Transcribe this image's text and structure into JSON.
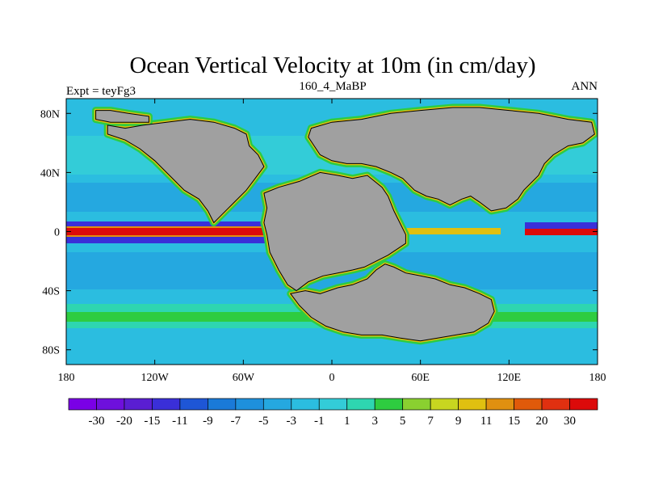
{
  "chart_data": {
    "type": "heatmap",
    "title": "Ocean Vertical Velocity at 10m (in cm/day)",
    "left_label": "Expt = teyFg3",
    "center_label": "160_4_MaBP",
    "right_label": "ANN",
    "x_ticks": [
      {
        "value": -180,
        "label": "180"
      },
      {
        "value": -120,
        "label": "120W"
      },
      {
        "value": -60,
        "label": "60W"
      },
      {
        "value": 0,
        "label": "0"
      },
      {
        "value": 60,
        "label": "60E"
      },
      {
        "value": 120,
        "label": "120E"
      },
      {
        "value": 180,
        "label": "180"
      }
    ],
    "y_ticks": [
      {
        "value": 80,
        "label": "80N"
      },
      {
        "value": 40,
        "label": "40N"
      },
      {
        "value": 0,
        "label": "0"
      },
      {
        "value": -40,
        "label": "40S"
      },
      {
        "value": -80,
        "label": "80S"
      }
    ],
    "xlim": [
      -180,
      180
    ],
    "ylim": [
      -90,
      90
    ],
    "land_color": "#a0a0a0",
    "colorbar": {
      "levels": [
        "-30",
        "-20",
        "-15",
        "-11",
        "-9",
        "-7",
        "-5",
        "-3",
        "-1",
        "1",
        "3",
        "5",
        "7",
        "9",
        "11",
        "15",
        "20",
        "30"
      ],
      "colors": [
        "#7a00e6",
        "#6e10dc",
        "#5a1ed2",
        "#3a2fd8",
        "#1e56d6",
        "#1a7ad8",
        "#1e90dc",
        "#25a8e0",
        "#2bbde0",
        "#33ccd8",
        "#2ed6b0",
        "#2ecc40",
        "#8ad030",
        "#c8d620",
        "#e0c010",
        "#e09010",
        "#e05a0a",
        "#e03010",
        "#dc0a0a"
      ]
    },
    "land_polygons": [
      {
        "name": "north-america",
        "points": [
          [
            -152,
            72
          ],
          [
            -140,
            70
          ],
          [
            -128,
            72
          ],
          [
            -112,
            74
          ],
          [
            -96,
            76
          ],
          [
            -80,
            74
          ],
          [
            -66,
            70
          ],
          [
            -58,
            66
          ],
          [
            -56,
            58
          ],
          [
            -50,
            52
          ],
          [
            -46,
            44
          ],
          [
            -52,
            36
          ],
          [
            -58,
            28
          ],
          [
            -66,
            20
          ],
          [
            -76,
            10
          ],
          [
            -80,
            6
          ],
          [
            -84,
            14
          ],
          [
            -90,
            22
          ],
          [
            -100,
            28
          ],
          [
            -106,
            34
          ],
          [
            -112,
            40
          ],
          [
            -120,
            48
          ],
          [
            -130,
            56
          ],
          [
            -140,
            62
          ],
          [
            -152,
            66
          ]
        ]
      },
      {
        "name": "eurasia",
        "points": [
          [
            -14,
            70
          ],
          [
            0,
            74
          ],
          [
            20,
            76
          ],
          [
            40,
            80
          ],
          [
            60,
            82
          ],
          [
            82,
            84
          ],
          [
            100,
            84
          ],
          [
            120,
            82
          ],
          [
            140,
            80
          ],
          [
            160,
            76
          ],
          [
            176,
            74
          ],
          [
            178,
            66
          ],
          [
            170,
            60
          ],
          [
            160,
            58
          ],
          [
            150,
            52
          ],
          [
            144,
            46
          ],
          [
            140,
            38
          ],
          [
            134,
            32
          ],
          [
            130,
            28
          ],
          [
            126,
            22
          ],
          [
            118,
            16
          ],
          [
            108,
            14
          ],
          [
            100,
            20
          ],
          [
            94,
            24
          ],
          [
            88,
            22
          ],
          [
            80,
            18
          ],
          [
            72,
            22
          ],
          [
            64,
            24
          ],
          [
            56,
            28
          ],
          [
            48,
            36
          ],
          [
            40,
            40
          ],
          [
            30,
            44
          ],
          [
            20,
            46
          ],
          [
            10,
            46
          ],
          [
            0,
            48
          ],
          [
            -8,
            52
          ],
          [
            -12,
            58
          ],
          [
            -16,
            64
          ]
        ]
      },
      {
        "name": "south-america-africa",
        "points": [
          [
            -46,
            26
          ],
          [
            -36,
            30
          ],
          [
            -22,
            34
          ],
          [
            -8,
            40
          ],
          [
            4,
            38
          ],
          [
            14,
            36
          ],
          [
            24,
            38
          ],
          [
            34,
            30
          ],
          [
            38,
            24
          ],
          [
            42,
            14
          ],
          [
            46,
            6
          ],
          [
            50,
            -2
          ],
          [
            50,
            -8
          ],
          [
            44,
            -12
          ],
          [
            38,
            -16
          ],
          [
            30,
            -20
          ],
          [
            22,
            -24
          ],
          [
            14,
            -26
          ],
          [
            4,
            -28
          ],
          [
            -6,
            -30
          ],
          [
            -16,
            -34
          ],
          [
            -24,
            -40
          ],
          [
            -30,
            -36
          ],
          [
            -36,
            -26
          ],
          [
            -42,
            -14
          ],
          [
            -44,
            -2
          ],
          [
            -46,
            6
          ],
          [
            -44,
            16
          ]
        ]
      },
      {
        "name": "india-antarctica-australia",
        "points": [
          [
            -28,
            -42
          ],
          [
            -18,
            -40
          ],
          [
            -8,
            -42
          ],
          [
            4,
            -38
          ],
          [
            14,
            -36
          ],
          [
            24,
            -32
          ],
          [
            30,
            -26
          ],
          [
            36,
            -22
          ],
          [
            42,
            -24
          ],
          [
            50,
            -28
          ],
          [
            60,
            -30
          ],
          [
            70,
            -32
          ],
          [
            80,
            -36
          ],
          [
            90,
            -38
          ],
          [
            100,
            -42
          ],
          [
            108,
            -46
          ],
          [
            110,
            -54
          ],
          [
            106,
            -62
          ],
          [
            96,
            -68
          ],
          [
            84,
            -70
          ],
          [
            72,
            -72
          ],
          [
            60,
            -74
          ],
          [
            46,
            -72
          ],
          [
            34,
            -70
          ],
          [
            20,
            -70
          ],
          [
            8,
            -68
          ],
          [
            -4,
            -64
          ],
          [
            -14,
            -58
          ],
          [
            -22,
            -50
          ]
        ]
      },
      {
        "name": "arctic-island",
        "points": [
          [
            -160,
            82
          ],
          [
            -150,
            82
          ],
          [
            -138,
            80
          ],
          [
            -124,
            78
          ],
          [
            -124,
            74
          ],
          [
            -136,
            74
          ],
          [
            -150,
            74
          ],
          [
            -160,
            76
          ]
        ]
      }
    ]
  }
}
